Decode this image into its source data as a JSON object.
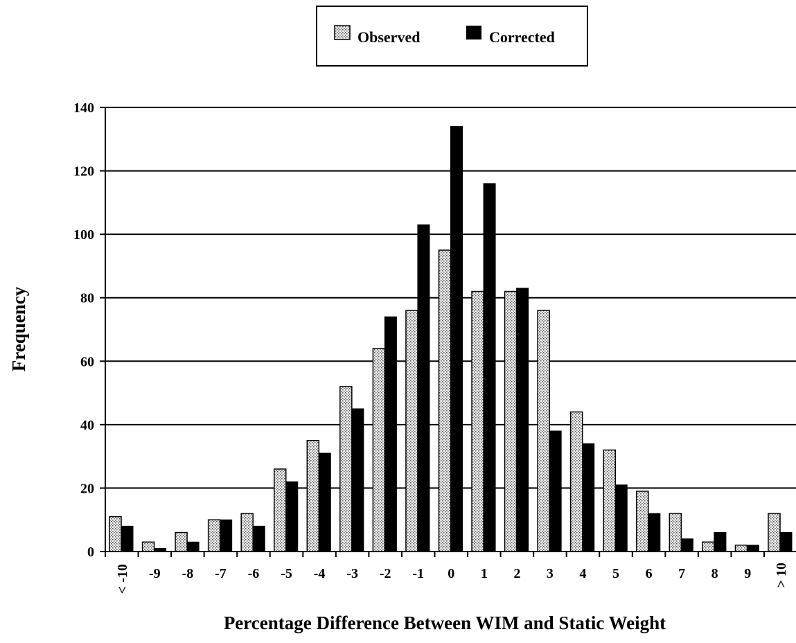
{
  "chart_data": {
    "type": "bar",
    "title": "",
    "xlabel": "Percentage Difference Between WIM and Static Weight",
    "ylabel": "Frequency",
    "ylim": [
      0,
      140
    ],
    "yticks": [
      "0",
      "20",
      "40",
      "60",
      "80",
      "100",
      "120",
      "140"
    ],
    "grid": "horizontal",
    "legend_position": "top-center",
    "categories": [
      "< -10",
      "-9",
      "-8",
      "-7",
      "-6",
      "-5",
      "-4",
      "-3",
      "-2",
      "-1",
      "0",
      "1",
      "2",
      "3",
      "4",
      "5",
      "6",
      "7",
      "8",
      "9",
      "> 10"
    ],
    "series": [
      {
        "name": "Observed",
        "pattern": "dotted",
        "color": "#d8d8d8",
        "values": [
          11,
          3,
          6,
          10,
          12,
          26,
          35,
          52,
          64,
          76,
          95,
          82,
          82,
          76,
          44,
          32,
          19,
          12,
          3,
          2,
          12
        ]
      },
      {
        "name": "Corrected",
        "pattern": "solid",
        "color": "#000000",
        "values": [
          8,
          1,
          3,
          10,
          8,
          22,
          31,
          45,
          74,
          103,
          134,
          116,
          83,
          38,
          34,
          21,
          12,
          4,
          6,
          2,
          6
        ]
      }
    ]
  }
}
